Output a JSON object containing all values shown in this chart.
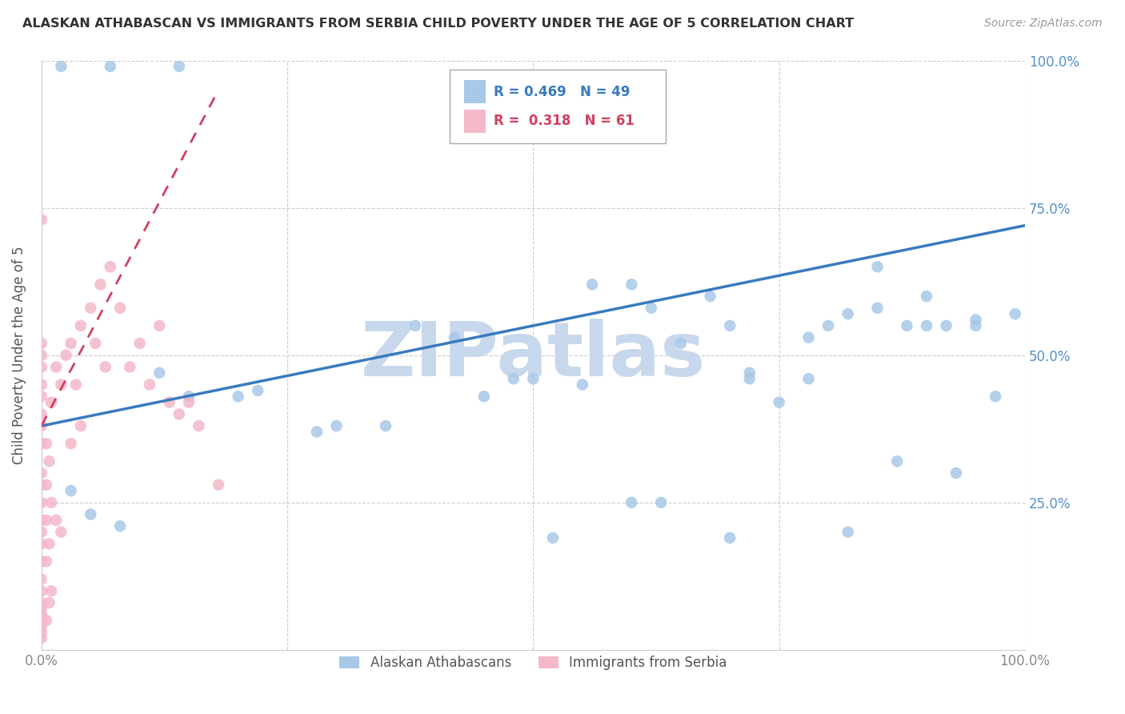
{
  "title": "ALASKAN ATHABASCAN VS IMMIGRANTS FROM SERBIA CHILD POVERTY UNDER THE AGE OF 5 CORRELATION CHART",
  "source": "Source: ZipAtlas.com",
  "ylabel": "Child Poverty Under the Age of 5",
  "xlim": [
    0,
    1
  ],
  "ylim": [
    0,
    1
  ],
  "xticks": [
    0,
    0.25,
    0.5,
    0.75,
    1.0
  ],
  "yticks": [
    0,
    0.25,
    0.5,
    0.75,
    1.0
  ],
  "xticklabels": [
    "0.0%",
    "",
    "",
    "",
    "100.0%"
  ],
  "yticklabels_right": [
    "",
    "25.0%",
    "50.0%",
    "75.0%",
    "100.0%"
  ],
  "legend_labels": [
    "Alaskan Athabascans",
    "Immigrants from Serbia"
  ],
  "blue_color": "#a8c8e8",
  "pink_color": "#f4b8c8",
  "trend_blue_color": "#3a7abf",
  "trend_pink_color": "#d04060",
  "watermark": "ZIPatlas",
  "watermark_color": "#c8d8ec",
  "blue_points_x": [
    0.02,
    0.07,
    0.14,
    0.03,
    0.05,
    0.08,
    0.12,
    0.15,
    0.22,
    0.28,
    0.35,
    0.38,
    0.42,
    0.48,
    0.52,
    0.55,
    0.6,
    0.62,
    0.65,
    0.7,
    0.72,
    0.75,
    0.78,
    0.8,
    0.82,
    0.85,
    0.87,
    0.9,
    0.92,
    0.95,
    0.97,
    0.99,
    0.6,
    0.63,
    0.7,
    0.82,
    0.88,
    0.93,
    0.56,
    0.45,
    0.68,
    0.72,
    0.78,
    0.85,
    0.9,
    0.95,
    0.5,
    0.3,
    0.2
  ],
  "blue_points_y": [
    0.99,
    0.99,
    0.99,
    0.27,
    0.23,
    0.21,
    0.47,
    0.43,
    0.44,
    0.37,
    0.38,
    0.55,
    0.53,
    0.46,
    0.19,
    0.45,
    0.62,
    0.58,
    0.52,
    0.55,
    0.47,
    0.42,
    0.46,
    0.55,
    0.57,
    0.58,
    0.32,
    0.55,
    0.55,
    0.56,
    0.43,
    0.57,
    0.25,
    0.25,
    0.19,
    0.2,
    0.55,
    0.3,
    0.62,
    0.43,
    0.6,
    0.46,
    0.53,
    0.65,
    0.6,
    0.55,
    0.46,
    0.38,
    0.43
  ],
  "pink_points_x": [
    0.0,
    0.0,
    0.0,
    0.0,
    0.0,
    0.0,
    0.0,
    0.0,
    0.0,
    0.0,
    0.0,
    0.0,
    0.0,
    0.0,
    0.0,
    0.0,
    0.0,
    0.0,
    0.0,
    0.0,
    0.0,
    0.0,
    0.0,
    0.0,
    0.0,
    0.005,
    0.005,
    0.005,
    0.005,
    0.005,
    0.008,
    0.008,
    0.008,
    0.01,
    0.01,
    0.01,
    0.015,
    0.015,
    0.02,
    0.02,
    0.025,
    0.03,
    0.03,
    0.035,
    0.04,
    0.04,
    0.05,
    0.055,
    0.06,
    0.065,
    0.07,
    0.08,
    0.09,
    0.1,
    0.11,
    0.12,
    0.13,
    0.14,
    0.15,
    0.16,
    0.18
  ],
  "pink_points_y": [
    0.73,
    0.52,
    0.5,
    0.48,
    0.45,
    0.43,
    0.4,
    0.38,
    0.35,
    0.3,
    0.28,
    0.25,
    0.22,
    0.2,
    0.18,
    0.15,
    0.12,
    0.1,
    0.08,
    0.07,
    0.06,
    0.05,
    0.04,
    0.03,
    0.02,
    0.35,
    0.28,
    0.22,
    0.15,
    0.05,
    0.32,
    0.18,
    0.08,
    0.42,
    0.25,
    0.1,
    0.48,
    0.22,
    0.45,
    0.2,
    0.5,
    0.52,
    0.35,
    0.45,
    0.55,
    0.38,
    0.58,
    0.52,
    0.62,
    0.48,
    0.65,
    0.58,
    0.48,
    0.52,
    0.45,
    0.55,
    0.42,
    0.4,
    0.42,
    0.38,
    0.28
  ],
  "blue_trend_x": [
    0.0,
    1.0
  ],
  "blue_trend_y": [
    0.38,
    0.72
  ],
  "pink_trend_x": [
    0.0,
    0.18
  ],
  "pink_trend_y": [
    0.38,
    0.95
  ]
}
